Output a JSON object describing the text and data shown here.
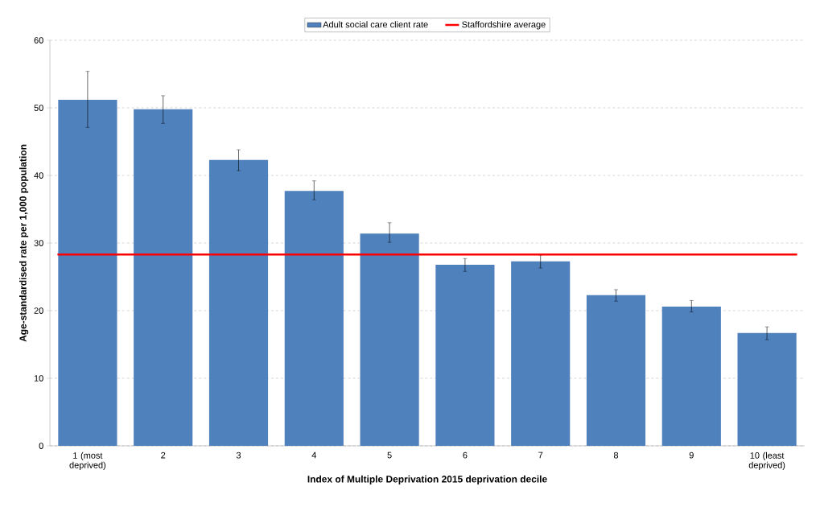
{
  "chart_data": {
    "type": "bar",
    "xlabel": "Index of Multiple Deprivation 2015 deprivation decile",
    "ylabel": "Age-standardised rate per 1,000 population",
    "categories": [
      "1 (most deprived)",
      "2",
      "3",
      "4",
      "5",
      "6",
      "7",
      "8",
      "9",
      "10 (least deprived)"
    ],
    "series": [
      {
        "name": "Adult social care client rate",
        "color": "#4f81bd",
        "values": [
          51.2,
          49.8,
          42.3,
          37.7,
          31.4,
          26.8,
          27.3,
          22.3,
          20.6,
          16.7
        ],
        "errors": [
          [
            47.1,
            55.4
          ],
          [
            47.7,
            51.8
          ],
          [
            40.7,
            43.8
          ],
          [
            36.4,
            39.2
          ],
          [
            30.1,
            33.0
          ],
          [
            25.8,
            27.7
          ],
          [
            26.3,
            28.2
          ],
          [
            21.4,
            23.1
          ],
          [
            19.8,
            21.5
          ],
          [
            15.7,
            17.6
          ]
        ]
      }
    ],
    "ref_lines": [
      {
        "axis": "y",
        "value": 28.3,
        "label": "Staffordshire average",
        "color": "#ff0000"
      }
    ],
    "ylim": [
      0,
      60
    ],
    "yticks": [
      0,
      10,
      20,
      30,
      40,
      50,
      60
    ],
    "grid": "y",
    "legend": "top"
  }
}
